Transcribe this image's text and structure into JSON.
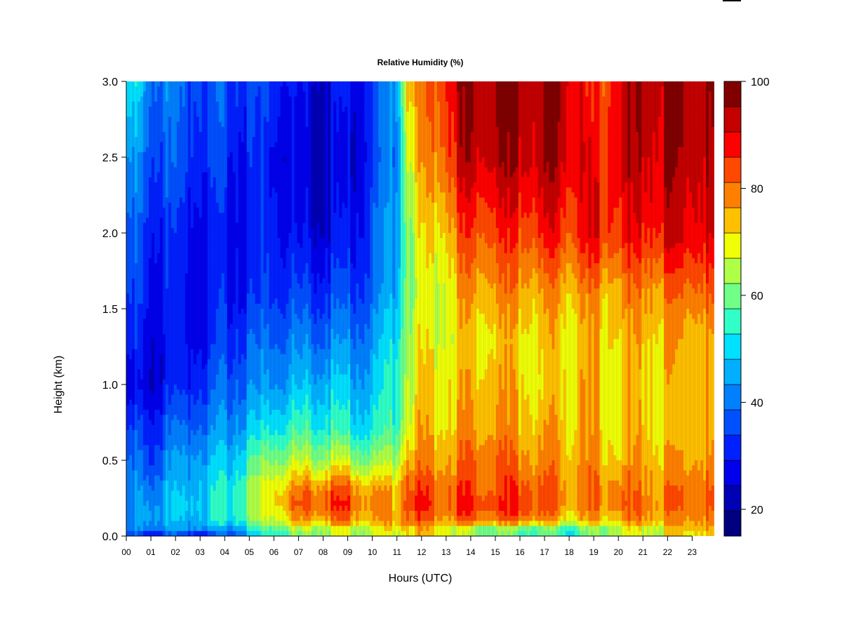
{
  "chart_data": {
    "type": "heatmap",
    "title": "Relative Humidity (%)",
    "xlabel": "Hours (UTC)",
    "ylabel": "Height (km)",
    "x_ticks": [
      "00",
      "01",
      "02",
      "03",
      "04",
      "05",
      "06",
      "07",
      "08",
      "09",
      "10",
      "11",
      "12",
      "13",
      "14",
      "15",
      "16",
      "17",
      "18",
      "19",
      "20",
      "21",
      "22",
      "23"
    ],
    "y_ticks": [
      "0.0",
      "0.5",
      "1.0",
      "1.5",
      "2.0",
      "2.5",
      "3.0"
    ],
    "xlim": [
      0,
      23.9
    ],
    "ylim": [
      0,
      3.0
    ],
    "colorbar": {
      "min": 15,
      "max": 100,
      "step": 5,
      "ticks": [
        "20",
        "40",
        "60",
        "80",
        "100"
      ],
      "colors": [
        "#00007f",
        "#0000b5",
        "#0000ec",
        "#0020ff",
        "#0050ff",
        "#0080ff",
        "#00b0ff",
        "#00e0ff",
        "#30ffc7",
        "#70ff87",
        "#b0ff47",
        "#f0ff07",
        "#ffc000",
        "#ff8000",
        "#ff4800",
        "#ff0000",
        "#c40000",
        "#800000"
      ]
    },
    "grid": false,
    "time_columns_hours": [
      0,
      1,
      2,
      3,
      4,
      5,
      6,
      7,
      8,
      9,
      10,
      11,
      11.5,
      12,
      13,
      13.5,
      14,
      15,
      16,
      17,
      18,
      19,
      20,
      21,
      22,
      23,
      23.9
    ],
    "height_rows_km": [
      0.0,
      0.05,
      0.1,
      0.2,
      0.3,
      0.5,
      0.7,
      1.0,
      1.3,
      1.6,
      2.0,
      2.5,
      3.0
    ],
    "values": [
      [
        35,
        30,
        35,
        30,
        35,
        45,
        55,
        62,
        68,
        68,
        68,
        70,
        75,
        75,
        72,
        68,
        65,
        60,
        58,
        60,
        55,
        62,
        68,
        70,
        72,
        75,
        75
      ],
      [
        40,
        45,
        45,
        48,
        45,
        55,
        62,
        68,
        70,
        70,
        72,
        75,
        80,
        78,
        75,
        70,
        68,
        65,
        65,
        62,
        60,
        65,
        72,
        72,
        75,
        78,
        78
      ],
      [
        42,
        50,
        48,
        52,
        55,
        62,
        70,
        78,
        80,
        82,
        78,
        80,
        88,
        85,
        80,
        85,
        85,
        82,
        85,
        80,
        75,
        78,
        80,
        82,
        80,
        82,
        82
      ],
      [
        42,
        48,
        50,
        52,
        55,
        65,
        75,
        85,
        88,
        88,
        82,
        78,
        92,
        90,
        85,
        90,
        90,
        88,
        90,
        85,
        82,
        82,
        85,
        85,
        82,
        85,
        85
      ],
      [
        40,
        45,
        48,
        52,
        55,
        65,
        75,
        82,
        85,
        85,
        80,
        78,
        90,
        88,
        85,
        88,
        88,
        85,
        88,
        85,
        82,
        82,
        85,
        82,
        82,
        85,
        85
      ],
      [
        40,
        38,
        45,
        48,
        50,
        58,
        65,
        68,
        68,
        68,
        65,
        68,
        82,
        80,
        80,
        82,
        85,
        85,
        82,
        80,
        80,
        80,
        78,
        80,
        78,
        80,
        80
      ],
      [
        35,
        35,
        40,
        42,
        45,
        50,
        55,
        58,
        58,
        55,
        55,
        60,
        75,
        78,
        76,
        80,
        80,
        80,
        78,
        78,
        78,
        78,
        75,
        78,
        75,
        78,
        78
      ],
      [
        25,
        28,
        32,
        35,
        40,
        42,
        45,
        48,
        50,
        48,
        50,
        58,
        72,
        75,
        75,
        76,
        78,
        78,
        76,
        72,
        78,
        78,
        75,
        76,
        76,
        78,
        78
      ],
      [
        32,
        30,
        30,
        30,
        35,
        38,
        40,
        42,
        42,
        42,
        45,
        55,
        70,
        72,
        72,
        75,
        75,
        75,
        75,
        75,
        76,
        76,
        78,
        78,
        78,
        78,
        78
      ],
      [
        35,
        32,
        30,
        30,
        32,
        32,
        35,
        35,
        35,
        35,
        40,
        50,
        68,
        70,
        72,
        78,
        80,
        80,
        80,
        78,
        80,
        80,
        80,
        82,
        82,
        85,
        85
      ],
      [
        38,
        35,
        32,
        30,
        30,
        30,
        32,
        28,
        28,
        28,
        38,
        48,
        68,
        72,
        78,
        85,
        88,
        88,
        88,
        90,
        90,
        92,
        92,
        92,
        95,
        95,
        95
      ],
      [
        45,
        40,
        38,
        35,
        35,
        32,
        30,
        25,
        25,
        25,
        35,
        45,
        75,
        78,
        88,
        95,
        98,
        98,
        98,
        98,
        98,
        90,
        95,
        98,
        98,
        98,
        98
      ],
      [
        55,
        45,
        40,
        38,
        38,
        35,
        35,
        28,
        28,
        28,
        35,
        48,
        82,
        80,
        92,
        98,
        100,
        100,
        100,
        98,
        100,
        85,
        95,
        100,
        100,
        100,
        100
      ]
    ]
  }
}
